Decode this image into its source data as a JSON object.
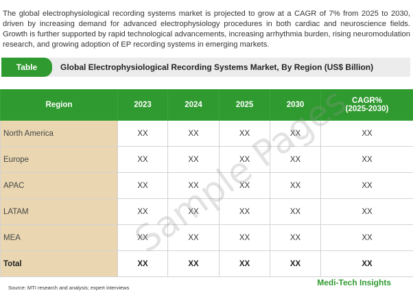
{
  "intro": "The global electrophysiological recording systems market is projected to grow at a CAGR of 7% from 2025 to 2030, driven by increasing demand for advanced electrophysiology procedures in both cardiac and neuroscience fields. Growth is further supported by rapid technological advancements, increasing arrhythmia burden, rising neuromodulation research, and growing adoption of EP recording systems in emerging markets.",
  "title_bar": {
    "tag": "Table",
    "title": "Global Electrophysiological Recording Systems Market, By Region (US$ Billion)"
  },
  "table": {
    "headers": [
      "Region",
      "2023",
      "2024",
      "2025",
      "2030",
      "CAGR%",
      "(2025-2030)"
    ],
    "rows": [
      {
        "region": "North America",
        "cells": [
          "XX",
          "XX",
          "XX",
          "XX",
          "XX"
        ]
      },
      {
        "region": "Europe",
        "cells": [
          "XX",
          "XX",
          "XX",
          "XX",
          "XX"
        ]
      },
      {
        "region": "APAC",
        "cells": [
          "XX",
          "XX",
          "XX",
          "XX",
          "XX"
        ]
      },
      {
        "region": "LATAM",
        "cells": [
          "XX",
          "XX",
          "XX",
          "XX",
          "XX"
        ]
      },
      {
        "region": "MEA",
        "cells": [
          "XX",
          "XX",
          "XX",
          "XX",
          "XX"
        ]
      },
      {
        "region": "Total",
        "cells": [
          "XX",
          "XX",
          "XX",
          "XX",
          "XX"
        ]
      }
    ]
  },
  "watermark": "Sample Pages",
  "source": "Source: MTI research and analysis; expert interviews",
  "brand": "Medi-Tech Insights"
}
